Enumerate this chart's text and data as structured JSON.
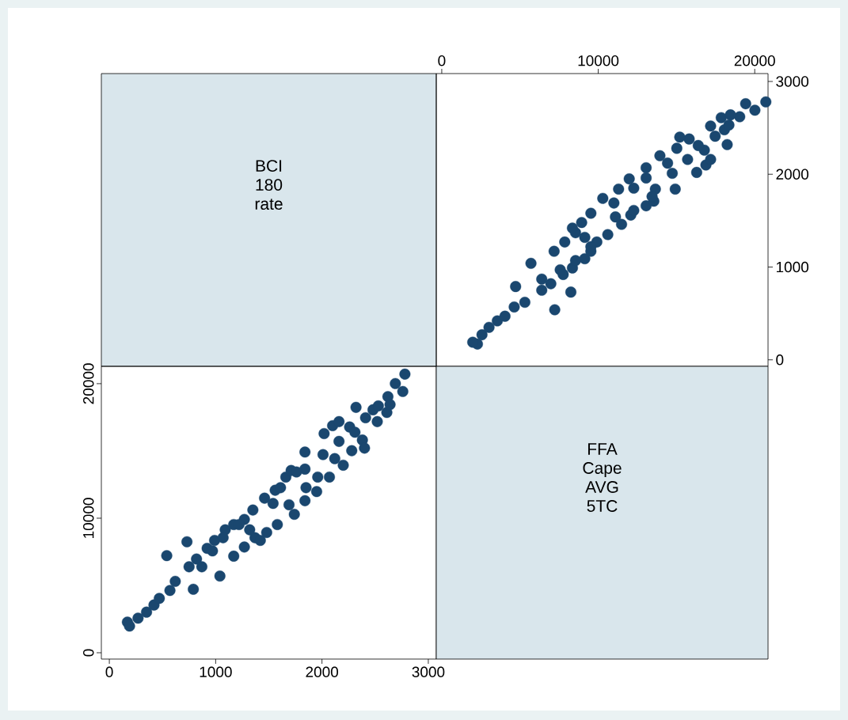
{
  "chart_data": [
    {
      "type": "other",
      "annotations": [
        "BCI",
        "180",
        "rate"
      ]
    },
    {
      "type": "scatter",
      "marker": "circle",
      "xlim": [
        -350,
        20850
      ],
      "xticks": [
        0,
        10000,
        20000
      ],
      "ylim": [
        -70,
        3085
      ],
      "yticks": [
        0,
        1000,
        2000,
        3000
      ],
      "series": [
        {
          "color": "#1a476f",
          "x": [
            2280,
            1980,
            2570,
            3020,
            3550,
            4040,
            7220,
            4630,
            5310,
            8250,
            6390,
            4720,
            6970,
            7760,
            8350,
            5700,
            9140,
            7180,
            9530,
            7860,
            9910,
            10610,
            8550,
            8350,
            11490,
            8940,
            12080,
            9530,
            13060,
            11000,
            13550,
            10290,
            14920,
            13650,
            11300,
            12270,
            13060,
            11980,
            14730,
            16290,
            13060,
            16880,
            14430,
            17180,
            15710,
            13940,
            16780,
            15020,
            16390,
            18240,
            15810,
            15210,
            17470,
            18060,
            17180,
            18350,
            17860,
            19040,
            18450,
            20010,
            19420,
            20710,
            6390,
            7570,
            8550,
            9530,
            9140,
            11100,
            12270,
            13440
          ],
          "values": [
            170,
            190,
            270,
            350,
            420,
            470,
            540,
            570,
            620,
            730,
            750,
            790,
            820,
            920,
            990,
            1040,
            1090,
            1170,
            1170,
            1270,
            1270,
            1350,
            1370,
            1420,
            1460,
            1480,
            1560,
            1580,
            1660,
            1690,
            1710,
            1740,
            1840,
            1840,
            1840,
            1850,
            1960,
            1950,
            2010,
            2020,
            2070,
            2100,
            2120,
            2160,
            2160,
            2200,
            2260,
            2280,
            2310,
            2320,
            2380,
            2400,
            2410,
            2480,
            2520,
            2530,
            2610,
            2620,
            2640,
            2690,
            2760,
            2780,
            870,
            970,
            1070,
            1220,
            1320,
            1540,
            1610,
            1760
          ]
        }
      ]
    },
    {
      "type": "scatter",
      "marker": "circle",
      "xlim": [
        -75,
        3075
      ],
      "xticks": [
        0,
        1000,
        2000,
        3000
      ],
      "ylim": [
        -470,
        21290
      ],
      "yticks": [
        0,
        10000,
        20000
      ],
      "series": [
        {
          "color": "#1a476f",
          "x": [
            170,
            190,
            270,
            350,
            420,
            470,
            540,
            570,
            620,
            730,
            750,
            790,
            820,
            920,
            990,
            1040,
            1090,
            1170,
            1170,
            1270,
            1270,
            1350,
            1370,
            1420,
            1460,
            1480,
            1560,
            1580,
            1660,
            1690,
            1710,
            1740,
            1840,
            1840,
            1840,
            1850,
            1960,
            1950,
            2010,
            2020,
            2070,
            2100,
            2120,
            2160,
            2160,
            2200,
            2260,
            2280,
            2310,
            2320,
            2380,
            2400,
            2410,
            2480,
            2520,
            2530,
            2610,
            2620,
            2640,
            2690,
            2760,
            2780,
            870,
            970,
            1070,
            1220,
            1320,
            1540,
            1610,
            1760
          ],
          "values": [
            2280,
            1980,
            2570,
            3020,
            3550,
            4040,
            7220,
            4630,
            5310,
            8250,
            6390,
            4720,
            6970,
            7760,
            8350,
            5700,
            9140,
            7180,
            9530,
            7860,
            9910,
            10610,
            8550,
            8350,
            11490,
            8940,
            12080,
            9530,
            13060,
            11000,
            13550,
            10290,
            14920,
            13650,
            11300,
            12270,
            13060,
            11980,
            14730,
            16290,
            13060,
            16880,
            14430,
            17180,
            15710,
            13940,
            16780,
            15020,
            16390,
            18240,
            15810,
            15210,
            17470,
            18060,
            17180,
            18350,
            17860,
            19040,
            18450,
            20010,
            19420,
            20710,
            6390,
            7570,
            8550,
            9530,
            9140,
            11100,
            12270,
            13440
          ]
        }
      ]
    },
    {
      "type": "other",
      "annotations": [
        "FFA",
        "Cape",
        "AVG",
        "5TC"
      ]
    }
  ]
}
